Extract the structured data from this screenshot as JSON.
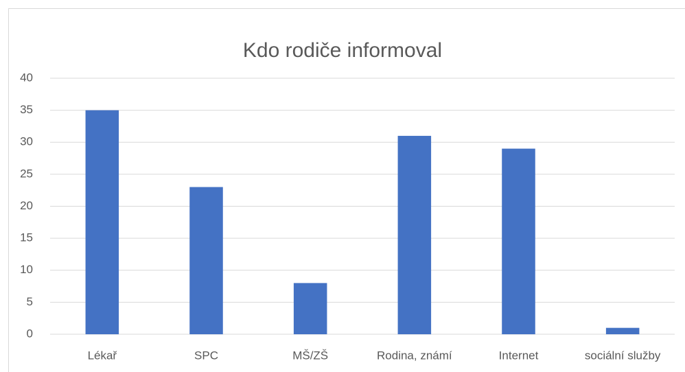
{
  "chart_data": {
    "type": "bar",
    "title": "Kdo rodiče informoval",
    "categories": [
      "Lékař",
      "SPC",
      "MŠ/ZŠ",
      "Rodina, známí",
      "Internet",
      "sociální služby"
    ],
    "values": [
      35,
      23,
      8,
      31,
      29,
      1
    ],
    "color": "#4472c4",
    "ylim": [
      0,
      40
    ],
    "yticks": [
      0,
      5,
      10,
      15,
      20,
      25,
      30,
      35,
      40
    ],
    "grid": true
  }
}
